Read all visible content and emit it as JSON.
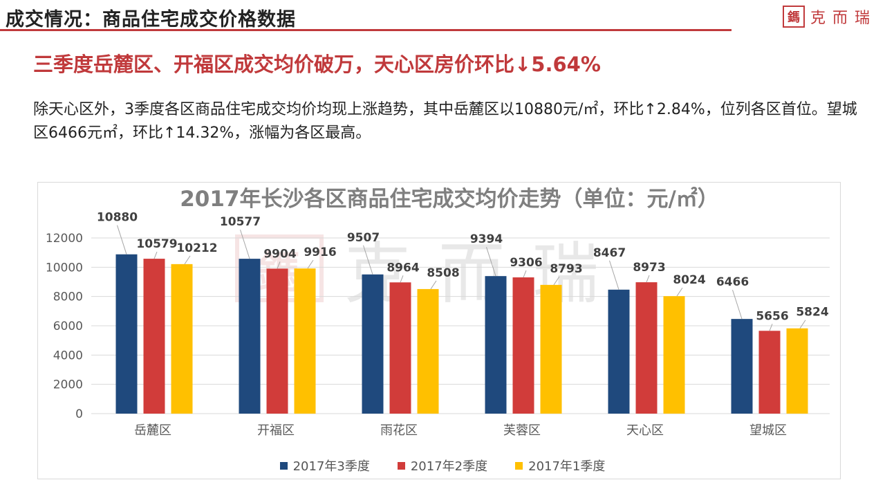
{
  "header": {
    "title": "成交情况：商品住宅成交价格数据",
    "logo_seal": "鎷",
    "logo_text": "克而瑞"
  },
  "headline": "三季度岳麓区、开福区成交均价破万，天心区房价环比↓5.64%",
  "paragraph": "除天心区外，3季度各区商品住宅成交均价均现上涨趋势，其中岳麓区以10880元/㎡，环比↑2.84%，位列各区首位。望城区6466元㎡，环比↑14.32%，涨幅为各区最高。",
  "watermark": "克而瑞",
  "colors": {
    "accent": "#c0393b",
    "series": [
      "#1f497d",
      "#d13c3a",
      "#ffc000"
    ],
    "grid": "#d9d9d9",
    "axis_text": "#595959",
    "label_text": "#404040"
  },
  "chart_data": {
    "type": "bar",
    "title": "2017年长沙各区商品住宅成交均价走势（单位：元/㎡）",
    "categories": [
      "岳麓区",
      "开福区",
      "雨花区",
      "芙蓉区",
      "天心区",
      "望城区"
    ],
    "series": [
      {
        "name": "2017年3季度",
        "values": [
          10880,
          10577,
          9507,
          9394,
          8467,
          6466
        ]
      },
      {
        "name": "2017年2季度",
        "values": [
          10579,
          9904,
          8964,
          9306,
          8973,
          5656
        ]
      },
      {
        "name": "2017年1季度",
        "values": [
          10212,
          9916,
          8508,
          8793,
          8024,
          5824
        ]
      }
    ],
    "ylim": [
      0,
      12000
    ],
    "yticks": [
      0,
      2000,
      4000,
      6000,
      8000,
      10000,
      12000
    ],
    "grid": true,
    "legend": "bottom",
    "xlabel": "",
    "ylabel": ""
  }
}
